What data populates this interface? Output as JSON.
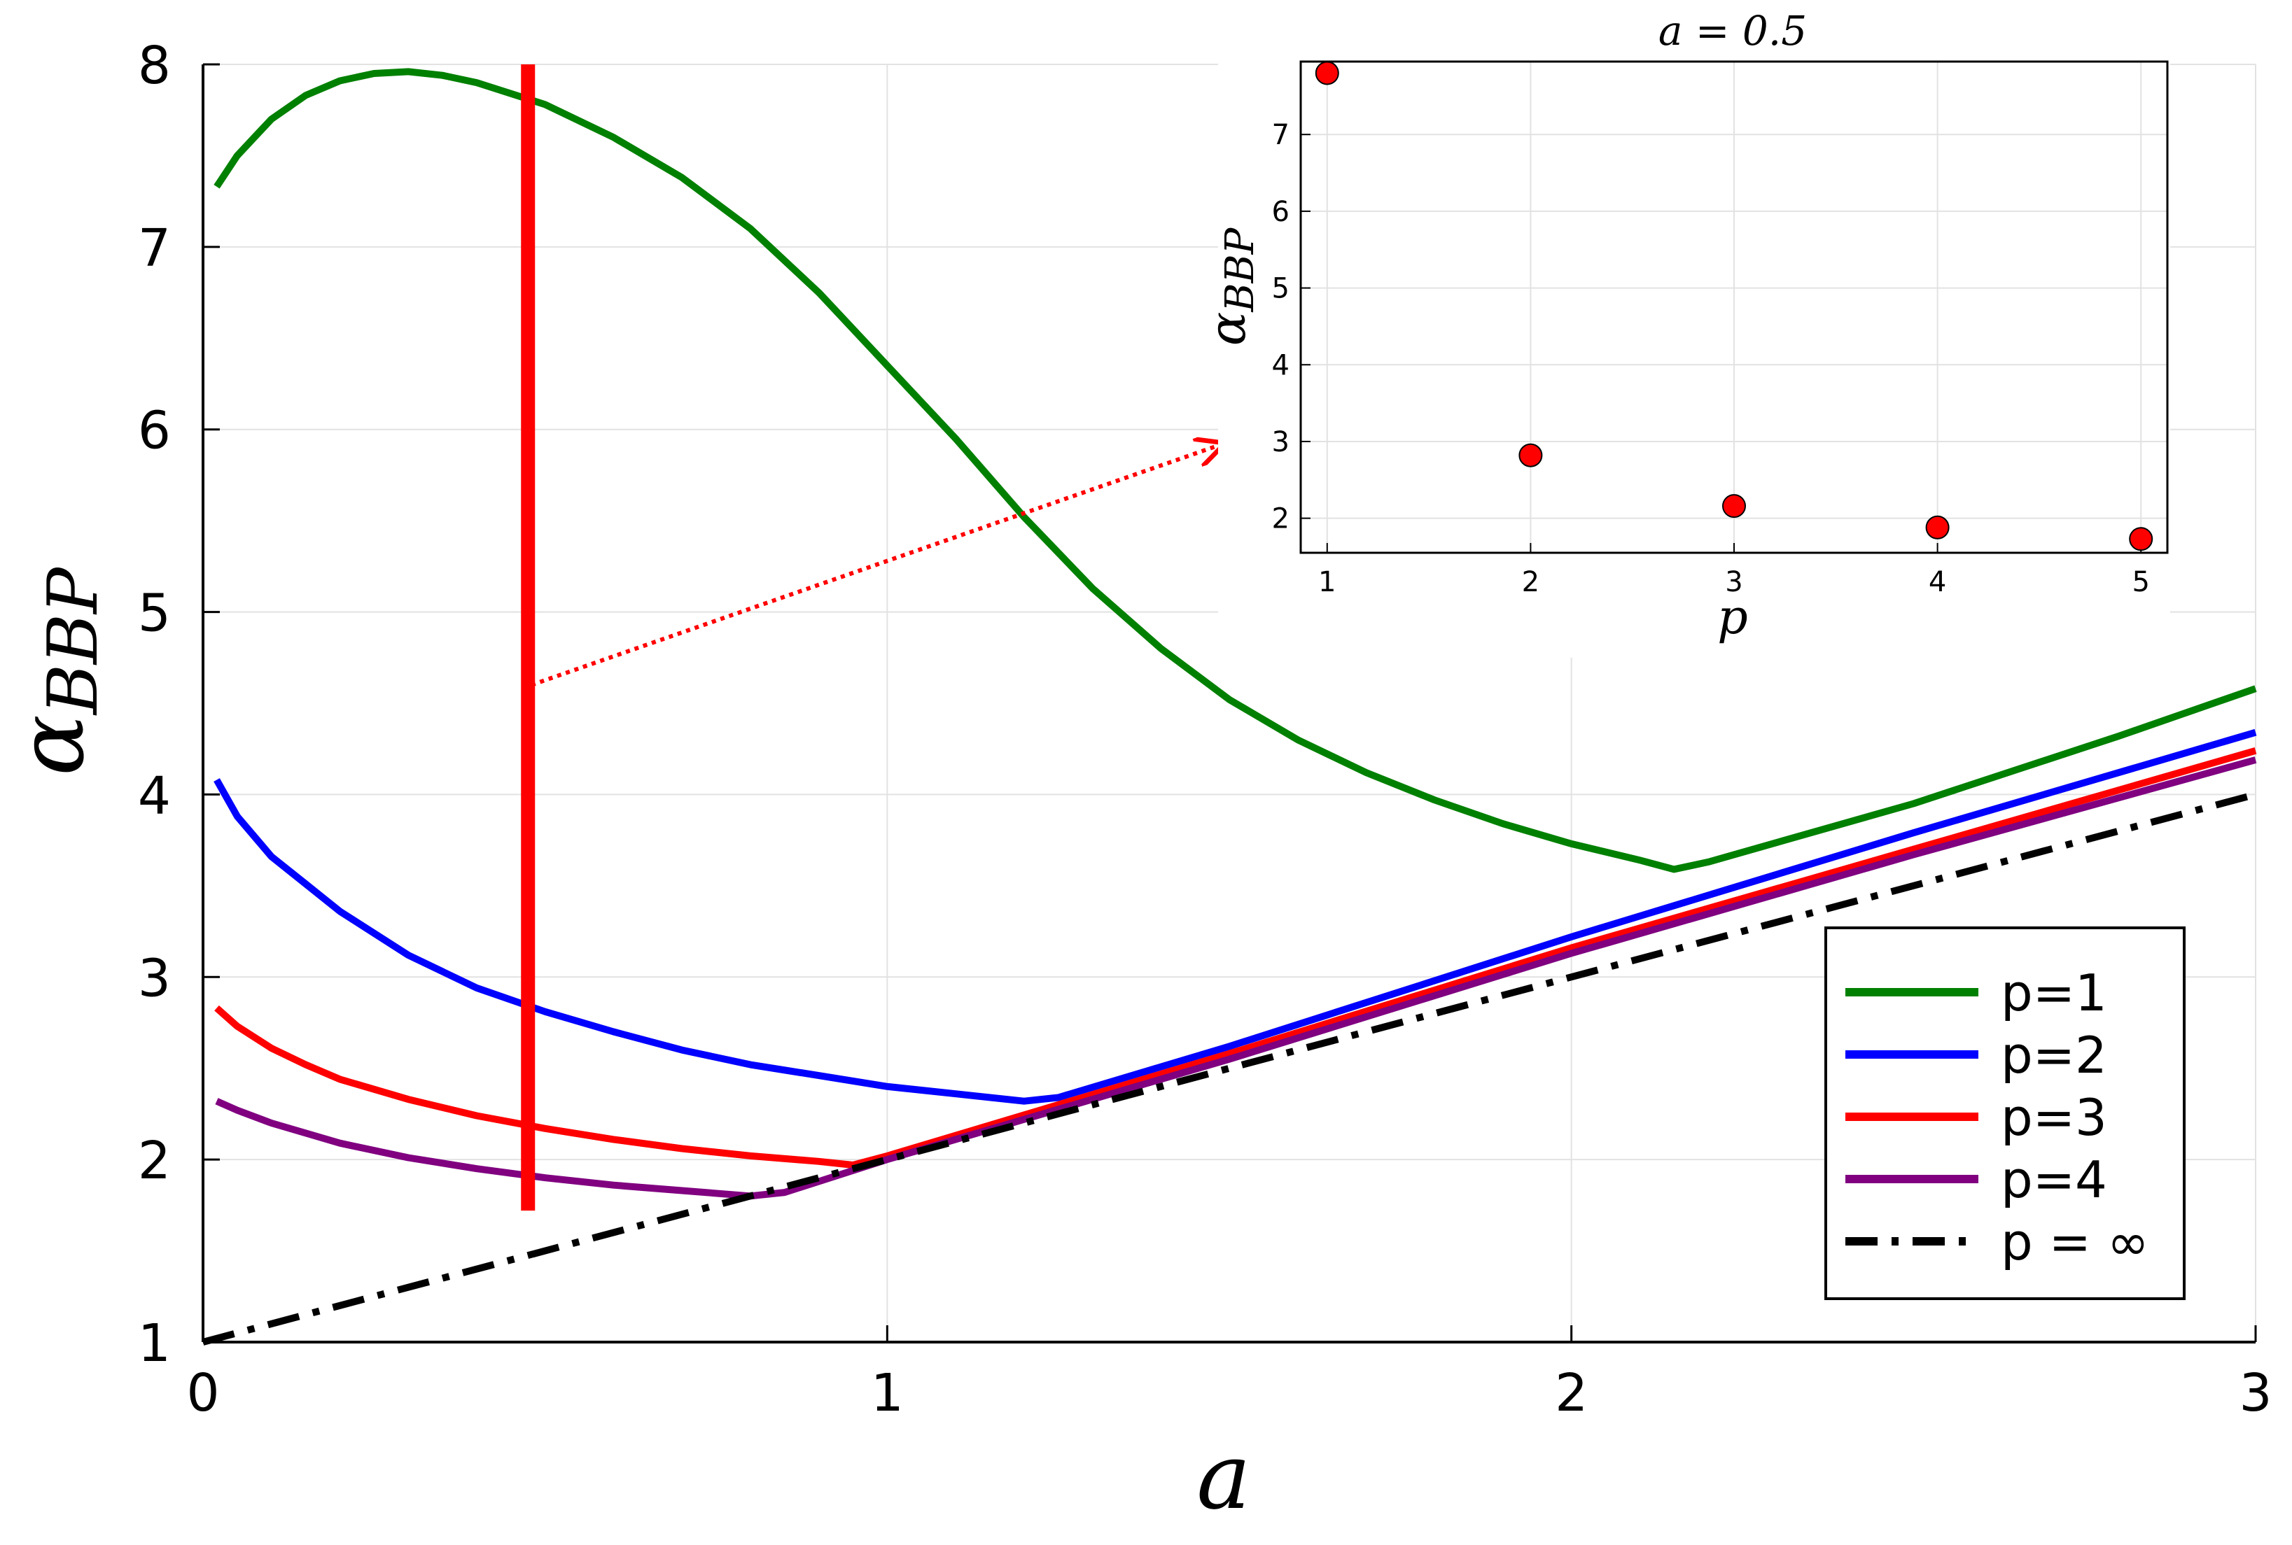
{
  "chart_data": [
    {
      "type": "line",
      "xlabel": "a",
      "ylabel_base": "α",
      "ylabel_sub": "BBP",
      "xlim": [
        0,
        3
      ],
      "ylim": [
        1,
        8
      ],
      "xticks": [
        "0",
        "1",
        "2",
        "3"
      ],
      "yticks": [
        "1",
        "2",
        "3",
        "4",
        "5",
        "6",
        "7",
        "8"
      ],
      "grid": true,
      "legend_position": "bottom-right",
      "series": [
        {
          "name": "p=1",
          "color": "#008000",
          "style": "solid",
          "x": [
            0.02,
            0.05,
            0.08,
            0.1,
            0.15,
            0.2,
            0.25,
            0.3,
            0.35,
            0.4,
            0.5,
            0.6,
            0.7,
            0.8,
            0.9,
            1.0,
            1.1,
            1.2,
            1.3,
            1.4,
            1.5,
            1.6,
            1.7,
            1.8,
            1.9,
            2.0,
            2.1,
            2.15,
            2.2,
            2.5,
            2.8,
            3.0
          ],
          "y": [
            7.33,
            7.5,
            7.62,
            7.7,
            7.83,
            7.91,
            7.95,
            7.96,
            7.94,
            7.9,
            7.78,
            7.6,
            7.38,
            7.1,
            6.75,
            6.35,
            5.95,
            5.52,
            5.13,
            4.8,
            4.52,
            4.3,
            4.12,
            3.97,
            3.84,
            3.73,
            3.64,
            3.59,
            3.63,
            3.95,
            4.32,
            4.58
          ]
        },
        {
          "name": "p=2",
          "color": "#0000ff",
          "style": "solid",
          "x": [
            0.02,
            0.05,
            0.1,
            0.15,
            0.2,
            0.3,
            0.4,
            0.5,
            0.6,
            0.7,
            0.8,
            0.9,
            1.0,
            1.1,
            1.2,
            1.25,
            1.5,
            2.0,
            2.5,
            3.0
          ],
          "y": [
            4.08,
            3.88,
            3.66,
            3.51,
            3.36,
            3.12,
            2.94,
            2.81,
            2.7,
            2.6,
            2.52,
            2.46,
            2.4,
            2.36,
            2.32,
            2.34,
            2.62,
            3.22,
            3.79,
            4.34
          ]
        },
        {
          "name": "p=3",
          "color": "#ff0000",
          "style": "solid",
          "x": [
            0.02,
            0.05,
            0.1,
            0.15,
            0.2,
            0.3,
            0.4,
            0.5,
            0.6,
            0.7,
            0.8,
            0.9,
            0.95,
            1.0,
            1.5,
            2.0,
            2.5,
            3.0
          ],
          "y": [
            2.83,
            2.73,
            2.61,
            2.52,
            2.44,
            2.33,
            2.24,
            2.17,
            2.11,
            2.06,
            2.02,
            1.99,
            1.97,
            2.02,
            2.58,
            3.16,
            3.7,
            4.24
          ]
        },
        {
          "name": "p=4",
          "color": "#800080",
          "style": "solid",
          "x": [
            0.02,
            0.05,
            0.1,
            0.2,
            0.3,
            0.4,
            0.5,
            0.6,
            0.7,
            0.8,
            0.85,
            1.0,
            1.5,
            2.0,
            2.5,
            3.0
          ],
          "y": [
            2.32,
            2.27,
            2.2,
            2.09,
            2.01,
            1.95,
            1.9,
            1.86,
            1.83,
            1.8,
            1.82,
            2.0,
            2.55,
            3.13,
            3.67,
            4.19
          ]
        },
        {
          "name": "p = ∞",
          "color": "#000000",
          "style": "dashdot",
          "x": [
            0,
            3
          ],
          "y": [
            1,
            4
          ]
        }
      ],
      "annotations": {
        "vertical_line": {
          "x": 0.475,
          "y_from": 1.72,
          "y_to": 8.0,
          "color": "#ff0000"
        },
        "arrow": {
          "from": [
            0.48,
            4.6
          ],
          "to": [
            1.49,
            5.92
          ],
          "color": "#ff0000",
          "style": "dotted"
        }
      }
    },
    {
      "type": "scatter",
      "title": "a = 0.5",
      "xlabel": "p",
      "ylabel_base": "α",
      "ylabel_sub": "BBP",
      "xlim": [
        0.87,
        5.13
      ],
      "ylim": [
        1.55,
        7.95
      ],
      "xticks": [
        "1",
        "2",
        "3",
        "4",
        "5"
      ],
      "yticks": [
        "2",
        "3",
        "4",
        "5",
        "6",
        "7"
      ],
      "grid": true,
      "marker_color": "#ff0000",
      "x": [
        1,
        2,
        3,
        4,
        5
      ],
      "y": [
        7.8,
        2.82,
        2.16,
        1.88,
        1.73
      ]
    }
  ]
}
